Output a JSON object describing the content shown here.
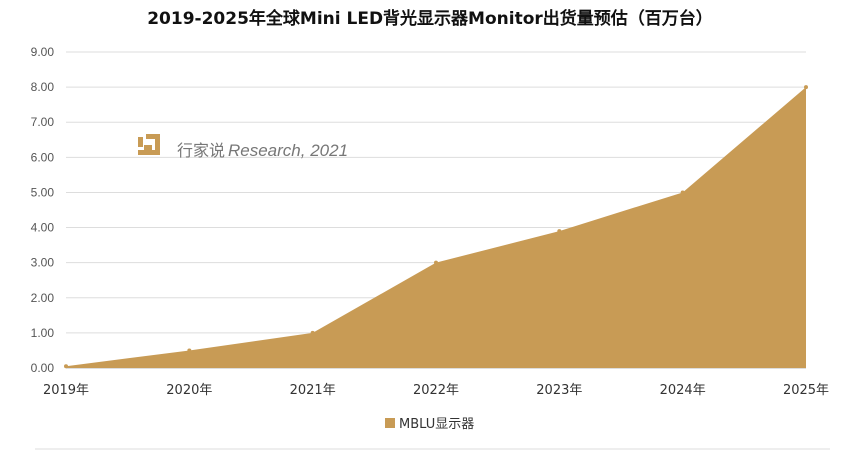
{
  "chart_data": {
    "type": "area",
    "title": "2019-2025年全球Mini LED背光显示器Monitor出货量预估（百万台）",
    "categories": [
      "2019年",
      "2020年",
      "2021年",
      "2022年",
      "2023年",
      "2024年",
      "2025年"
    ],
    "series": [
      {
        "name": "MBLU显示器",
        "values": [
          0.05,
          0.5,
          1.0,
          3.0,
          3.9,
          5.0,
          8.0
        ]
      }
    ],
    "y_ticks": [
      "0.00",
      "1.00",
      "2.00",
      "3.00",
      "4.00",
      "5.00",
      "6.00",
      "7.00",
      "8.00",
      "9.00"
    ],
    "ylim": [
      0,
      9
    ],
    "grid": true,
    "legend_position": "bottom",
    "colors": {
      "area": "#C89B55",
      "grid": "#DDDDDD",
      "watermark": "#C89B55"
    }
  },
  "watermark": {
    "brand_cn": "行家说",
    "text": "Research, 2021"
  }
}
